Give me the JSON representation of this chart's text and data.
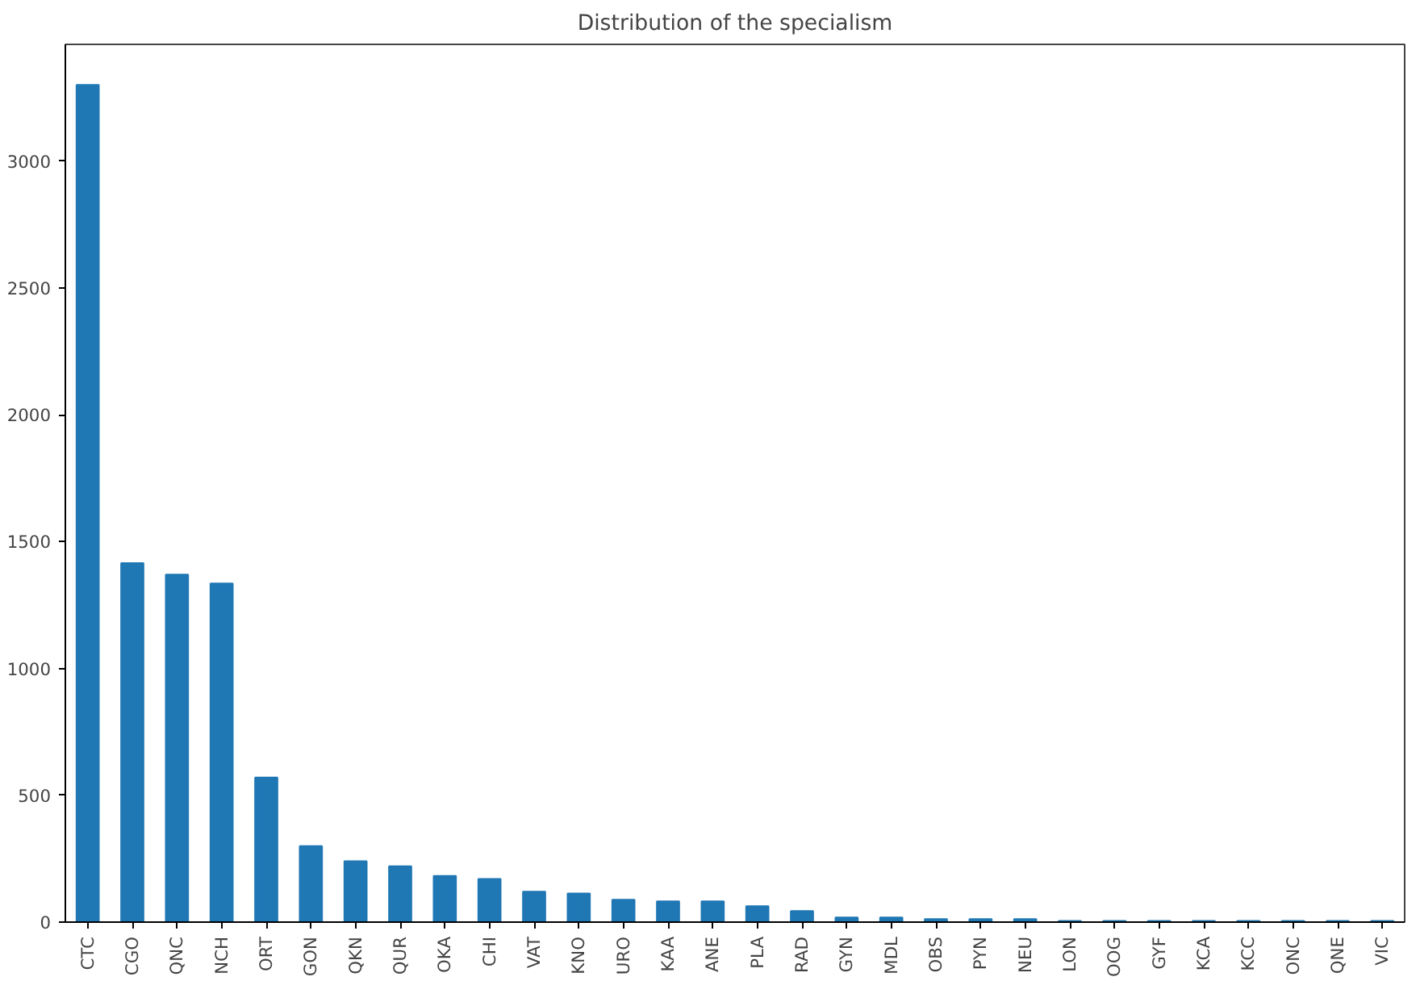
{
  "chart_data": {
    "type": "bar",
    "title": "Distribution of the specialism",
    "categories": [
      "CTC",
      "CGO",
      "QNC",
      "NCH",
      "ORT",
      "GON",
      "QKN",
      "QUR",
      "OKA",
      "CHI",
      "VAT",
      "KNO",
      "URO",
      "KAA",
      "ANE",
      "PLA",
      "RAD",
      "GYN",
      "MDL",
      "OBS",
      "PYN",
      "NEU",
      "LON",
      "OOG",
      "GYF",
      "KCA",
      "KCC",
      "ONC",
      "QNE",
      "VIC"
    ],
    "values": [
      3300,
      1415,
      1370,
      1335,
      570,
      300,
      240,
      220,
      182,
      170,
      120,
      113,
      88,
      82,
      82,
      63,
      44,
      18,
      18,
      12,
      12,
      12,
      5,
      5,
      5,
      5,
      5,
      5,
      5,
      5
    ],
    "color": "#1f77b4",
    "ylim": [
      0,
      3460
    ],
    "yticks": [
      0,
      500,
      1000,
      1500,
      2000,
      2500,
      3000
    ],
    "grid": false
  }
}
